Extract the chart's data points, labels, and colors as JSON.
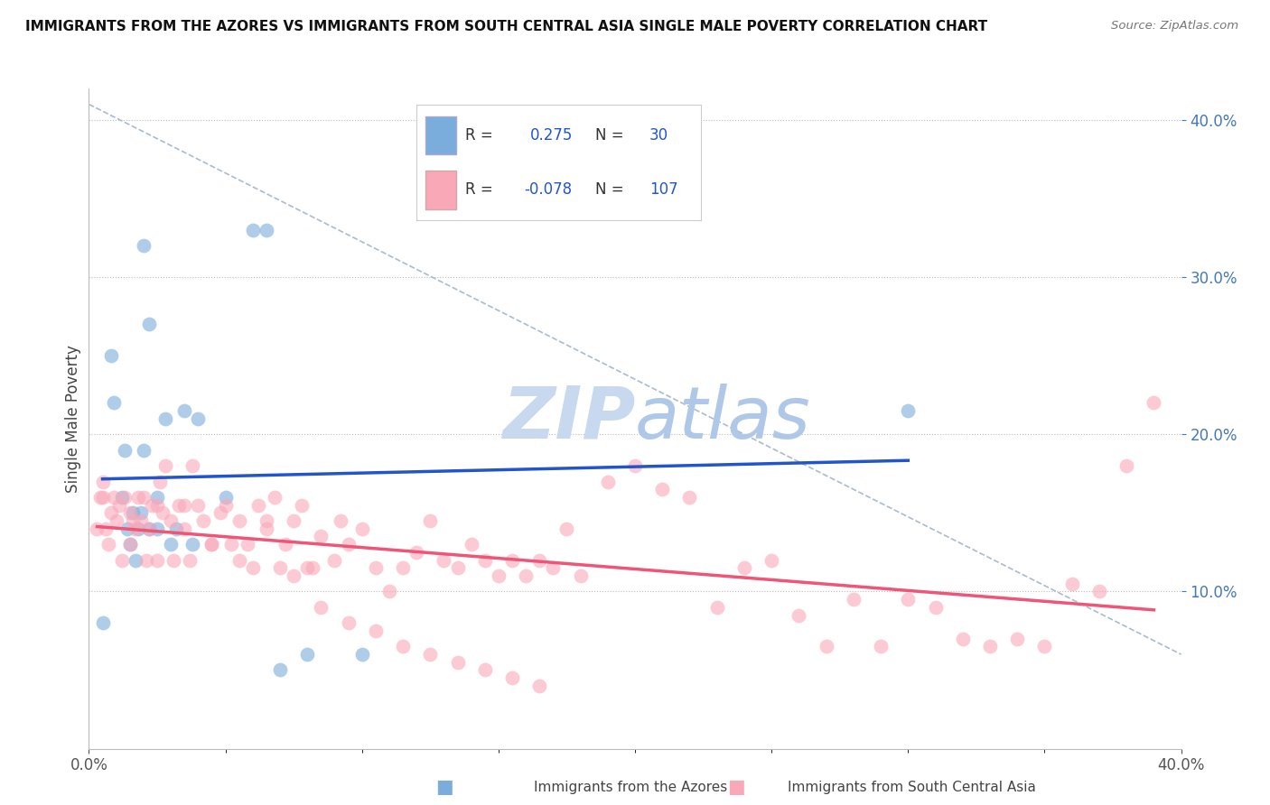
{
  "title": "IMMIGRANTS FROM THE AZORES VS IMMIGRANTS FROM SOUTH CENTRAL ASIA SINGLE MALE POVERTY CORRELATION CHART",
  "source": "Source: ZipAtlas.com",
  "ylabel": "Single Male Poverty",
  "legend_blue_r_val": "0.275",
  "legend_blue_n_val": "30",
  "legend_pink_r_val": "-0.078",
  "legend_pink_n_val": "107",
  "legend_label_blue": "Immigrants from the Azores",
  "legend_label_pink": "Immigrants from South Central Asia",
  "xlim": [
    0.0,
    0.4
  ],
  "ylim": [
    0.0,
    0.42
  ],
  "yticks": [
    0.1,
    0.2,
    0.3,
    0.4
  ],
  "ytick_labels": [
    "10.0%",
    "20.0%",
    "30.0%",
    "40.0%"
  ],
  "xtick_labels": [
    "0.0%",
    "40.0%"
  ],
  "background_color": "#ffffff",
  "blue_color": "#7aaddb",
  "pink_color": "#f9a8b8",
  "blue_line_color": "#2255cc",
  "pink_line_color": "#ee5577",
  "dash_color": "#aabbcc",
  "watermark_zip_color": "#c8d8ee",
  "watermark_atlas_color": "#b0c8e8",
  "blue_scatter_x": [
    0.005,
    0.008,
    0.009,
    0.012,
    0.013,
    0.014,
    0.015,
    0.016,
    0.017,
    0.018,
    0.019,
    0.02,
    0.02,
    0.022,
    0.022,
    0.025,
    0.025,
    0.028,
    0.03,
    0.032,
    0.035,
    0.038,
    0.04,
    0.05,
    0.06,
    0.065,
    0.07,
    0.08,
    0.1,
    0.3
  ],
  "blue_scatter_y": [
    0.08,
    0.25,
    0.22,
    0.16,
    0.19,
    0.14,
    0.13,
    0.15,
    0.12,
    0.14,
    0.15,
    0.19,
    0.32,
    0.27,
    0.14,
    0.14,
    0.16,
    0.21,
    0.13,
    0.14,
    0.215,
    0.13,
    0.21,
    0.16,
    0.33,
    0.33,
    0.05,
    0.06,
    0.06,
    0.215
  ],
  "pink_scatter_x": [
    0.003,
    0.004,
    0.005,
    0.006,
    0.007,
    0.008,
    0.009,
    0.01,
    0.011,
    0.012,
    0.013,
    0.015,
    0.016,
    0.017,
    0.018,
    0.019,
    0.02,
    0.021,
    0.022,
    0.023,
    0.025,
    0.026,
    0.027,
    0.028,
    0.03,
    0.031,
    0.033,
    0.035,
    0.037,
    0.038,
    0.04,
    0.042,
    0.045,
    0.048,
    0.05,
    0.052,
    0.055,
    0.058,
    0.06,
    0.062,
    0.065,
    0.068,
    0.07,
    0.072,
    0.075,
    0.078,
    0.08,
    0.082,
    0.085,
    0.09,
    0.092,
    0.095,
    0.1,
    0.105,
    0.11,
    0.115,
    0.12,
    0.125,
    0.13,
    0.135,
    0.14,
    0.145,
    0.15,
    0.155,
    0.16,
    0.165,
    0.17,
    0.175,
    0.18,
    0.19,
    0.2,
    0.21,
    0.22,
    0.23,
    0.24,
    0.25,
    0.26,
    0.27,
    0.28,
    0.29,
    0.3,
    0.31,
    0.32,
    0.33,
    0.34,
    0.35,
    0.36,
    0.37,
    0.38,
    0.39,
    0.005,
    0.015,
    0.025,
    0.035,
    0.045,
    0.055,
    0.065,
    0.075,
    0.085,
    0.095,
    0.105,
    0.115,
    0.125,
    0.135,
    0.145,
    0.155,
    0.165
  ],
  "pink_scatter_y": [
    0.14,
    0.16,
    0.17,
    0.14,
    0.13,
    0.15,
    0.16,
    0.145,
    0.155,
    0.12,
    0.16,
    0.15,
    0.145,
    0.14,
    0.16,
    0.145,
    0.16,
    0.12,
    0.14,
    0.155,
    0.155,
    0.17,
    0.15,
    0.18,
    0.145,
    0.12,
    0.155,
    0.155,
    0.12,
    0.18,
    0.155,
    0.145,
    0.13,
    0.15,
    0.155,
    0.13,
    0.145,
    0.13,
    0.115,
    0.155,
    0.145,
    0.16,
    0.115,
    0.13,
    0.145,
    0.155,
    0.115,
    0.115,
    0.135,
    0.12,
    0.145,
    0.13,
    0.14,
    0.115,
    0.1,
    0.115,
    0.125,
    0.145,
    0.12,
    0.115,
    0.13,
    0.12,
    0.11,
    0.12,
    0.11,
    0.12,
    0.115,
    0.14,
    0.11,
    0.17,
    0.18,
    0.165,
    0.16,
    0.09,
    0.115,
    0.12,
    0.085,
    0.065,
    0.095,
    0.065,
    0.095,
    0.09,
    0.07,
    0.065,
    0.07,
    0.065,
    0.105,
    0.1,
    0.18,
    0.22,
    0.16,
    0.13,
    0.12,
    0.14,
    0.13,
    0.12,
    0.14,
    0.11,
    0.09,
    0.08,
    0.075,
    0.065,
    0.06,
    0.055,
    0.05,
    0.045,
    0.04
  ]
}
